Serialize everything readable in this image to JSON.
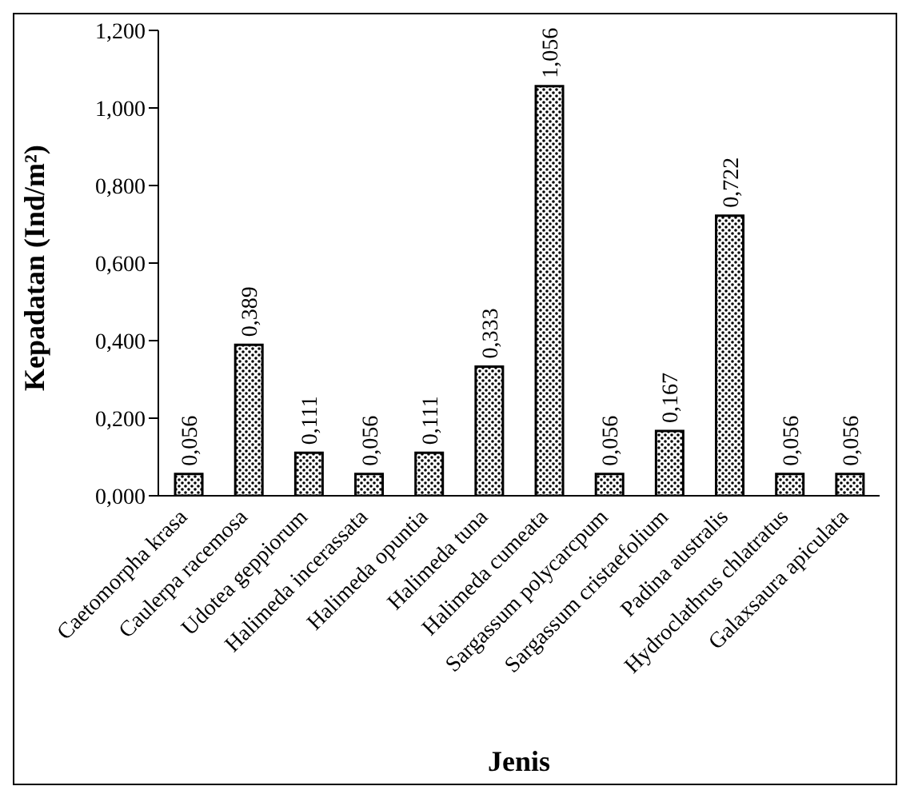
{
  "chart_data": {
    "type": "bar",
    "xlabel": "Jenis",
    "ylabel": "Kepadatan (Ind/m²)",
    "categories": [
      "Caetomorpha krasa",
      "Caulerpa racemosa",
      "Udotea geppiorum",
      "Halimeda incerassata",
      "Halimeda opuntia",
      "Halimeda tuna",
      "Halimeda cumeata",
      "Sargassum polycarcpum",
      "Sargassum cristaefolium",
      "Padina australis",
      "Hydroclathrus chlatratus",
      "Galaxsaura apiculata"
    ],
    "values": [
      0.056,
      0.389,
      0.111,
      0.056,
      0.111,
      0.333,
      1.056,
      0.056,
      0.167,
      0.722,
      0.056,
      0.056
    ],
    "value_labels": [
      "0,056",
      "0,389",
      "0,111",
      "0,056",
      "0,111",
      "0,333",
      "1,056",
      "0,056",
      "0,167",
      "0,722",
      "0,056",
      "0,056"
    ],
    "color": "#000000",
    "ylim": [
      0,
      1.2
    ],
    "yticks": [
      {
        "value": 0,
        "label": "0,000"
      },
      {
        "value": 0.2,
        "label": "0,200"
      },
      {
        "value": 0.4,
        "label": "0,400"
      },
      {
        "value": 0.6,
        "label": "0,600"
      },
      {
        "value": 0.8,
        "label": "0,800"
      },
      {
        "value": 1,
        "label": "1,000"
      },
      {
        "value": 1.2,
        "label": "1,200"
      }
    ],
    "grid": false,
    "legend": false
  }
}
